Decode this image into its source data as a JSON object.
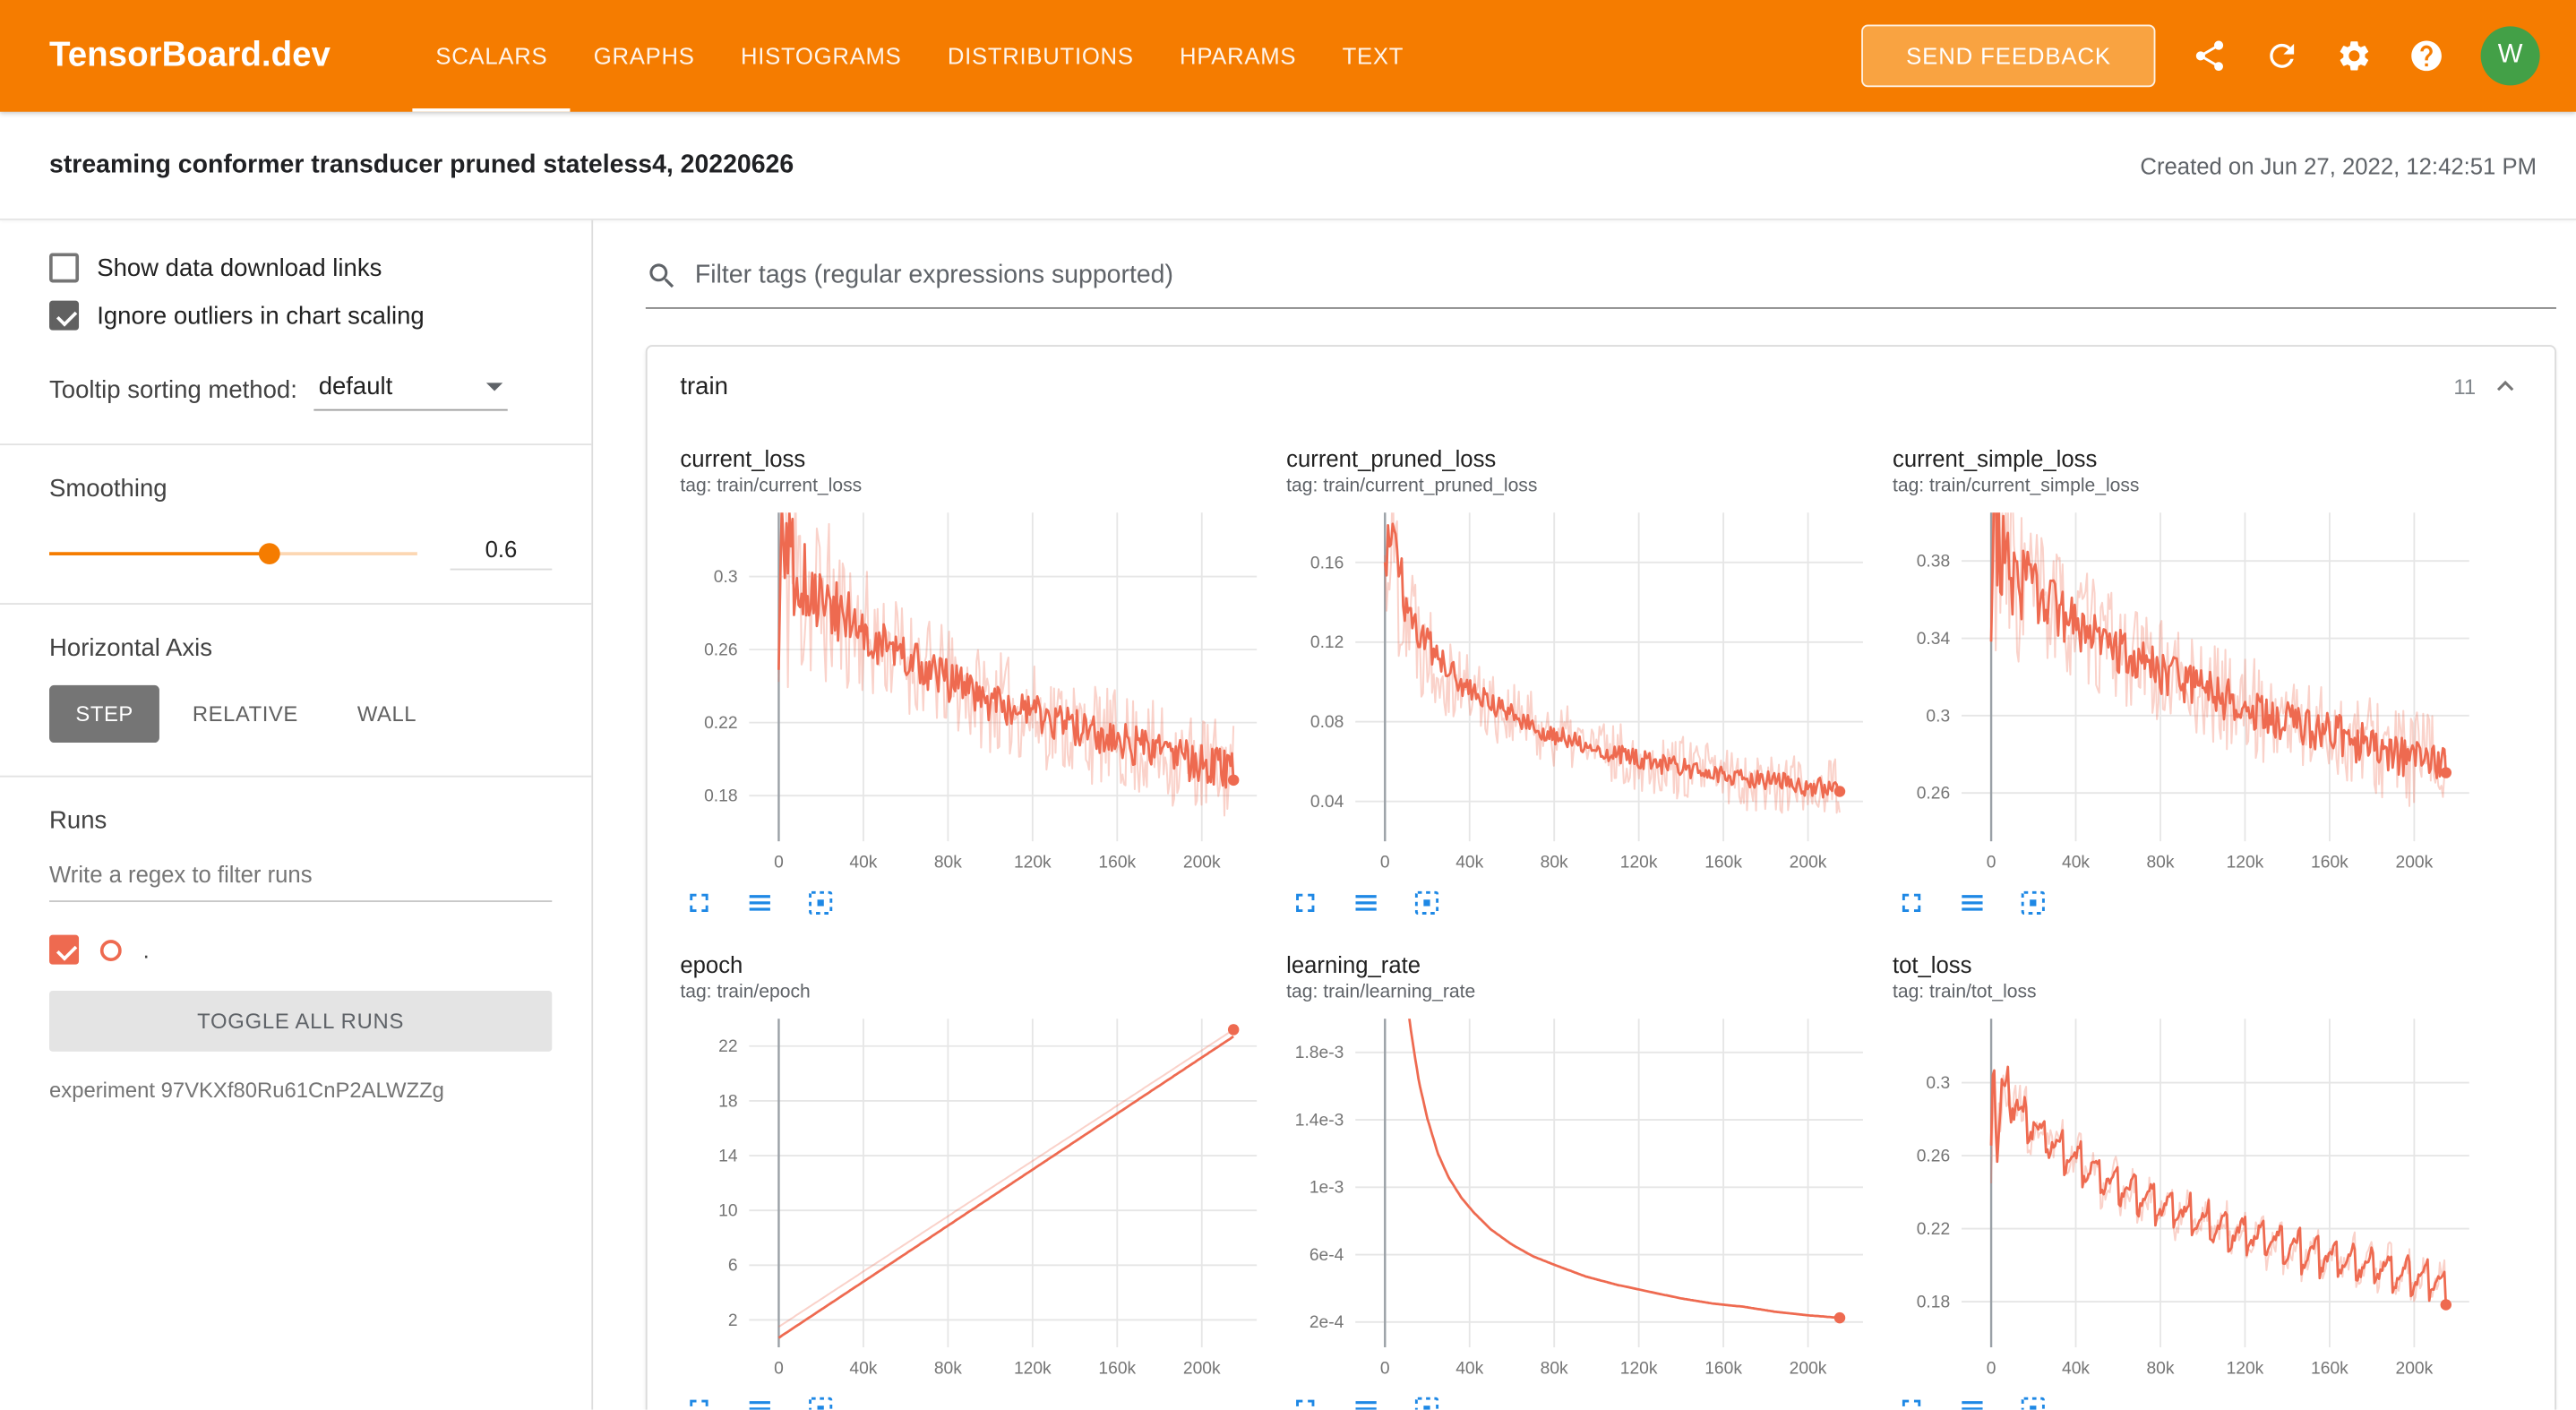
{
  "header": {
    "brand": "TensorBoard.dev",
    "nav": [
      "SCALARS",
      "GRAPHS",
      "HISTOGRAMS",
      "DISTRIBUTIONS",
      "HPARAMS",
      "TEXT"
    ],
    "active_nav": "SCALARS",
    "feedback_button": "SEND FEEDBACK",
    "avatar_letter": "W"
  },
  "subheader": {
    "title": "streaming conformer transducer pruned stateless4, 20220626",
    "created": "Created on Jun 27, 2022, 12:42:51 PM"
  },
  "sidebar": {
    "show_links_label": "Show data download links",
    "ignore_outliers_label": "Ignore outliers in chart scaling",
    "tooltip_label": "Tooltip sorting method:",
    "tooltip_value": "default",
    "smoothing_label": "Smoothing",
    "smoothing_value": "0.6",
    "horizontal_axis_label": "Horizontal Axis",
    "axis_buttons": [
      "STEP",
      "RELATIVE",
      "WALL"
    ],
    "axis_active": "STEP",
    "runs_label": "Runs",
    "runs_filter_placeholder": "Write a regex to filter runs",
    "run_name": ".",
    "toggle_all": "TOGGLE ALL RUNS",
    "experiment": "experiment 97VKXf80Ru61CnP2ALWZZg"
  },
  "main": {
    "filter_placeholder": "Filter tags (regular expressions supported)",
    "group_title": "train",
    "group_count": "11"
  },
  "colors": {
    "header_bg": "#f57c00",
    "accent": "#f57c00",
    "run_color": "#ee6a50",
    "chart_icon_blue": "#1e88e5",
    "avatar_green": "#43a047"
  },
  "chart_data": [
    {
      "type": "line",
      "title": "current_loss",
      "tag": "tag: train/current_loss",
      "x_max": 215000,
      "x_range": [
        -14000,
        226000
      ],
      "y_range": [
        0.155,
        0.335
      ],
      "x_tick_values": [
        0,
        40000,
        80000,
        120000,
        160000,
        200000
      ],
      "x_tick_labels": [
        "0",
        "40k",
        "80k",
        "120k",
        "160k",
        "200k"
      ],
      "y_tick_values": [
        0.18,
        0.22,
        0.26,
        0.3
      ],
      "y_tick_labels": [
        "0.18",
        "0.22",
        "0.26",
        "0.3"
      ],
      "trend": [
        [
          0,
          0.24
        ],
        [
          1500,
          0.34
        ],
        [
          4000,
          0.31
        ],
        [
          8000,
          0.3
        ],
        [
          15000,
          0.292
        ],
        [
          25000,
          0.283
        ],
        [
          40000,
          0.27
        ],
        [
          55000,
          0.259
        ],
        [
          70000,
          0.249
        ],
        [
          85000,
          0.24
        ],
        [
          100000,
          0.232
        ],
        [
          115000,
          0.226
        ],
        [
          130000,
          0.221
        ],
        [
          145000,
          0.215
        ],
        [
          160000,
          0.21
        ],
        [
          175000,
          0.205
        ],
        [
          190000,
          0.2
        ],
        [
          205000,
          0.196
        ],
        [
          215000,
          0.193
        ]
      ],
      "noise": 0.011,
      "raw_noise": 0.028,
      "start_boost": 2.5,
      "seed": 11
    },
    {
      "type": "line",
      "title": "current_pruned_loss",
      "tag": "tag: train/current_pruned_loss",
      "x_max": 215000,
      "x_range": [
        -14000,
        226000
      ],
      "y_range": [
        0.02,
        0.185
      ],
      "x_tick_values": [
        0,
        40000,
        80000,
        120000,
        160000,
        200000
      ],
      "x_tick_labels": [
        "0",
        "40k",
        "80k",
        "120k",
        "160k",
        "200k"
      ],
      "y_tick_values": [
        0.04,
        0.08,
        0.12,
        0.16
      ],
      "y_tick_labels": [
        "0.04",
        "0.08",
        "0.12",
        "0.16"
      ],
      "trend": [
        [
          0,
          0.15
        ],
        [
          1500,
          0.18
        ],
        [
          5000,
          0.162
        ],
        [
          10000,
          0.14
        ],
        [
          18000,
          0.122
        ],
        [
          28000,
          0.108
        ],
        [
          40000,
          0.096
        ],
        [
          55000,
          0.086
        ],
        [
          70000,
          0.078
        ],
        [
          85000,
          0.072
        ],
        [
          100000,
          0.067
        ],
        [
          115000,
          0.062
        ],
        [
          130000,
          0.059
        ],
        [
          145000,
          0.056
        ],
        [
          160000,
          0.053
        ],
        [
          175000,
          0.051
        ],
        [
          190000,
          0.049
        ],
        [
          205000,
          0.047
        ],
        [
          215000,
          0.046
        ]
      ],
      "noise": 0.005,
      "raw_noise": 0.016,
      "start_boost": 2.5,
      "seed": 22
    },
    {
      "type": "line",
      "title": "current_simple_loss",
      "tag": "tag: train/current_simple_loss",
      "x_max": 215000,
      "x_range": [
        -14000,
        226000
      ],
      "y_range": [
        0.235,
        0.405
      ],
      "x_tick_values": [
        0,
        40000,
        80000,
        120000,
        160000,
        200000
      ],
      "x_tick_labels": [
        "0",
        "40k",
        "80k",
        "120k",
        "160k",
        "200k"
      ],
      "y_tick_values": [
        0.26,
        0.3,
        0.34,
        0.38
      ],
      "y_tick_labels": [
        "0.26",
        "0.3",
        "0.34",
        "0.38"
      ],
      "trend": [
        [
          0,
          0.33
        ],
        [
          1500,
          0.41
        ],
        [
          4000,
          0.385
        ],
        [
          8000,
          0.378
        ],
        [
          15000,
          0.368
        ],
        [
          25000,
          0.359
        ],
        [
          40000,
          0.347
        ],
        [
          55000,
          0.337
        ],
        [
          70000,
          0.328
        ],
        [
          85000,
          0.32
        ],
        [
          100000,
          0.313
        ],
        [
          115000,
          0.307
        ],
        [
          130000,
          0.301
        ],
        [
          145000,
          0.296
        ],
        [
          160000,
          0.291
        ],
        [
          175000,
          0.286
        ],
        [
          190000,
          0.281
        ],
        [
          205000,
          0.277
        ],
        [
          215000,
          0.275
        ]
      ],
      "noise": 0.011,
      "raw_noise": 0.026,
      "start_boost": 2,
      "seed": 33
    },
    {
      "type": "line",
      "title": "epoch",
      "tag": "tag: train/epoch",
      "x_max": 215000,
      "x_range": [
        -14000,
        226000
      ],
      "y_range": [
        0,
        24
      ],
      "x_tick_values": [
        0,
        40000,
        80000,
        120000,
        160000,
        200000
      ],
      "x_tick_labels": [
        "0",
        "40k",
        "80k",
        "120k",
        "160k",
        "200k"
      ],
      "y_tick_values": [
        2,
        6,
        10,
        14,
        18,
        22
      ],
      "y_tick_labels": [
        "2",
        "6",
        "10",
        "14",
        "18",
        "22"
      ],
      "trend": [
        [
          0,
          0.7
        ],
        [
          215000,
          22.7
        ]
      ],
      "raw_trend": [
        [
          0,
          1.5
        ],
        [
          215000,
          23.2
        ]
      ],
      "noise": 0,
      "raw_noise": 0,
      "start_boost": 0,
      "seed": 44,
      "dot_series": "raw"
    },
    {
      "type": "line",
      "title": "learning_rate",
      "tag": "tag: train/learning_rate",
      "x_max": 215000,
      "x_range": [
        -14000,
        226000
      ],
      "y_range": [
        5e-05,
        0.002
      ],
      "x_tick_values": [
        0,
        40000,
        80000,
        120000,
        160000,
        200000
      ],
      "x_tick_labels": [
        "0",
        "40k",
        "80k",
        "120k",
        "160k",
        "200k"
      ],
      "y_tick_values": [
        0.0002,
        0.0006,
        0.001,
        0.0014,
        0.0018
      ],
      "y_tick_labels": [
        "2e-4",
        "6e-4",
        "1e-3",
        "1.4e-3",
        "1.8e-3"
      ],
      "trend": [
        [
          0,
          0.003
        ],
        [
          4000,
          0.0029
        ],
        [
          8000,
          0.0024
        ],
        [
          12000,
          0.00195
        ],
        [
          16000,
          0.00163
        ],
        [
          20000,
          0.00141
        ],
        [
          25000,
          0.0012
        ],
        [
          30000,
          0.00106
        ],
        [
          36000,
          0.00094
        ],
        [
          42000,
          0.00085
        ],
        [
          50000,
          0.00075
        ],
        [
          60000,
          0.00066
        ],
        [
          70000,
          0.00059
        ],
        [
          80000,
          0.00054
        ],
        [
          95000,
          0.00047
        ],
        [
          110000,
          0.00042
        ],
        [
          125000,
          0.00038
        ],
        [
          140000,
          0.00034
        ],
        [
          155000,
          0.00031
        ],
        [
          170000,
          0.00029
        ],
        [
          185000,
          0.00026
        ],
        [
          200000,
          0.00024
        ],
        [
          215000,
          0.000225
        ]
      ],
      "noise": 0,
      "raw_noise": 0,
      "start_boost": 0,
      "seed": 55,
      "has_raw": false
    },
    {
      "type": "line",
      "title": "tot_loss",
      "tag": "tag: train/tot_loss",
      "x_max": 215000,
      "x_range": [
        -14000,
        226000
      ],
      "y_range": [
        0.155,
        0.335
      ],
      "x_tick_values": [
        0,
        40000,
        80000,
        120000,
        160000,
        200000
      ],
      "x_tick_labels": [
        "0",
        "40k",
        "80k",
        "120k",
        "160k",
        "200k"
      ],
      "y_tick_values": [
        0.18,
        0.22,
        0.26,
        0.3
      ],
      "y_tick_labels": [
        "0.18",
        "0.22",
        "0.26",
        "0.3"
      ],
      "trend": [
        [
          0,
          0.27
        ],
        [
          1200,
          0.33
        ],
        [
          2500,
          0.26
        ],
        [
          5000,
          0.3
        ],
        [
          9000,
          0.292
        ],
        [
          15000,
          0.283
        ],
        [
          25000,
          0.272
        ],
        [
          40000,
          0.258
        ],
        [
          55000,
          0.247
        ],
        [
          70000,
          0.238
        ],
        [
          85000,
          0.231
        ],
        [
          100000,
          0.224
        ],
        [
          115000,
          0.218
        ],
        [
          130000,
          0.213
        ],
        [
          145000,
          0.208
        ],
        [
          160000,
          0.204
        ],
        [
          175000,
          0.2
        ],
        [
          190000,
          0.196
        ],
        [
          205000,
          0.192
        ],
        [
          215000,
          0.19
        ]
      ],
      "osc": {
        "amp": 0.011,
        "period": 8600
      },
      "noise": 0.003,
      "raw_noise": 0.008,
      "start_boost": 1.5,
      "seed": 66
    }
  ]
}
